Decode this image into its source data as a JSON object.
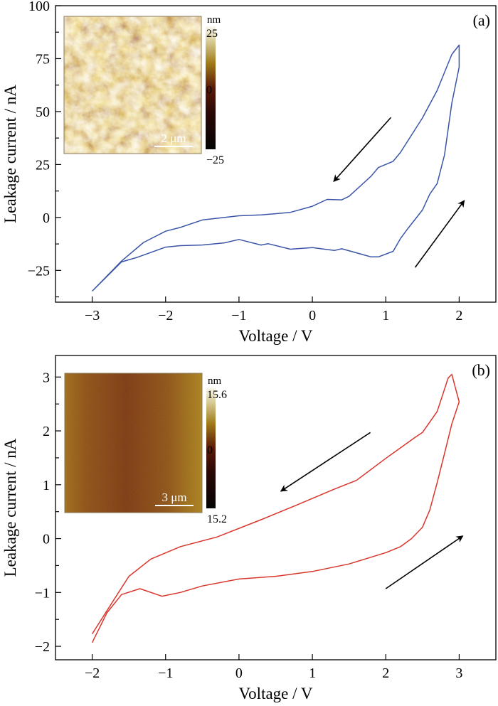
{
  "chart_data": [
    {
      "type": "line",
      "panel_label": "(a)",
      "xlabel": "Voltage / V",
      "ylabel": "Leakage current / nA",
      "xlim": [
        -3.5,
        2.5
      ],
      "ylim": [
        -40,
        100
      ],
      "xticks": [
        -3,
        -2,
        -1,
        0,
        1,
        2
      ],
      "xtick_labels": [
        "−3",
        "−2",
        "−1",
        "0",
        "1",
        "2"
      ],
      "yticks": [
        -25,
        0,
        25,
        50,
        75,
        100
      ],
      "ytick_labels": [
        "−25",
        "0",
        "25",
        "50",
        "75",
        "100"
      ],
      "grid": false,
      "line_color": "#3a55a8",
      "series": [
        {
          "x": [
            -3,
            -2.6,
            -2.4,
            -2,
            -1.8,
            -1.5,
            -1.2,
            -1,
            -0.7,
            -0.6,
            -0.3,
            0,
            0.3,
            0.4,
            0.8,
            0.9,
            1.1,
            1.2,
            1.3,
            1.5,
            1.6,
            1.7,
            1.8,
            1.9,
            2.0,
            2.0,
            1.9,
            1.7,
            1.5,
            1.2,
            1.1,
            0.9,
            0.8,
            0.5,
            0.4,
            0.2,
            0,
            -0.3,
            -0.7,
            -1,
            -1.5,
            -1.8,
            -2,
            -2.3,
            -2.6,
            -3
          ],
          "y": [
            -34.8,
            -21,
            -19,
            -14,
            -13.3,
            -13,
            -12,
            -10.4,
            -13,
            -12.4,
            -15,
            -14.2,
            -15.6,
            -14.8,
            -18.6,
            -18.6,
            -16,
            -10,
            -5.3,
            3.5,
            11,
            16,
            29.5,
            54,
            71,
            81.4,
            77,
            60,
            47,
            30.7,
            26.5,
            23.6,
            19.5,
            10,
            8.3,
            8.5,
            5.3,
            2.4,
            1.2,
            0.8,
            -1.2,
            -4.7,
            -6.5,
            -11.8,
            -20.6,
            -34.8
          ]
        }
      ],
      "arrows": [
        {
          "from": [
            1.07,
            47.2
          ],
          "to": [
            0.29,
            17
          ]
        },
        {
          "from": [
            1.4,
            -23.6
          ],
          "to": [
            2.07,
            8.0
          ]
        }
      ],
      "inset": {
        "scale_bar": "2 μm",
        "colorbar_unit": "nm",
        "colorbar_max": "25",
        "colorbar_mid": "0",
        "colorbar_min": "−25",
        "texture": "rough"
      }
    },
    {
      "type": "line",
      "panel_label": "(b)",
      "xlabel": "Voltage / V",
      "ylabel": "Leakage current / nA",
      "xlim": [
        -2.5,
        3.5
      ],
      "ylim": [
        -2.25,
        3.4
      ],
      "xticks": [
        -2,
        -1,
        0,
        1,
        2,
        3
      ],
      "xtick_labels": [
        "−2",
        "−1",
        "0",
        "1",
        "2",
        "3"
      ],
      "yticks": [
        -2,
        -1,
        0,
        1,
        2,
        3
      ],
      "ytick_labels": [
        "−2",
        "−1",
        "0",
        "1",
        "2",
        "3"
      ],
      "grid": false,
      "line_color": "#d9352b",
      "series": [
        {
          "x": [
            -2,
            -1.8,
            -1.6,
            -1.35,
            -1.05,
            -0.8,
            -0.5,
            0,
            0.5,
            1,
            1.5,
            2,
            2.2,
            2.35,
            2.5,
            2.6,
            2.7,
            2.8,
            2.9,
            3.0,
            2.95,
            2.9,
            2.85,
            2.7,
            2.5,
            2.4,
            2,
            1.6,
            1.3,
            0.8,
            0.3,
            -0.3,
            -0.8,
            -1.2,
            -1.5,
            -1.65,
            -1.8,
            -2
          ],
          "y": [
            -1.93,
            -1.38,
            -1.04,
            -0.93,
            -1.07,
            -1.0,
            -0.88,
            -0.75,
            -0.7,
            -0.61,
            -0.47,
            -0.26,
            -0.15,
            0.0,
            0.21,
            0.53,
            1.04,
            1.58,
            2.13,
            2.54,
            2.79,
            3.05,
            2.98,
            2.36,
            1.97,
            1.88,
            1.49,
            1.08,
            0.92,
            0.63,
            0.35,
            0.03,
            -0.15,
            -0.38,
            -0.7,
            -1.02,
            -1.34,
            -1.77
          ]
        }
      ],
      "arrows": [
        {
          "from": [
            1.79,
            1.97
          ],
          "to": [
            0.57,
            0.88
          ]
        },
        {
          "from": [
            2.0,
            -0.93
          ],
          "to": [
            3.05,
            0.05
          ]
        }
      ],
      "inset": {
        "scale_bar": "3 μm",
        "colorbar_unit": "nm",
        "colorbar_max": "15.6",
        "colorbar_mid": "0",
        "colorbar_min": "15.2",
        "texture": "smooth"
      }
    }
  ]
}
